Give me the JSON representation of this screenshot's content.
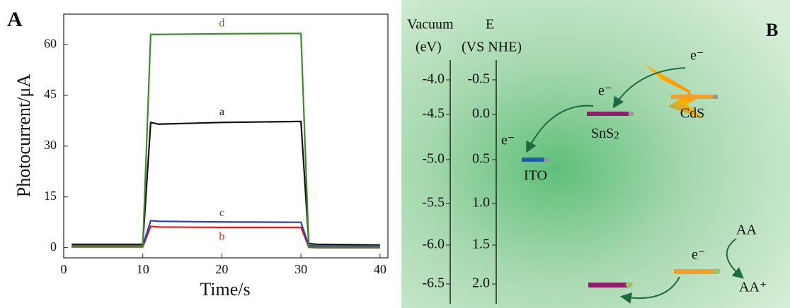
{
  "chart_data": {
    "type": "line",
    "panel_label": "A",
    "x_label": "Time/s",
    "y_label": "Photocurrent/μA",
    "x": [
      1,
      10,
      11,
      12,
      20,
      30,
      31,
      32,
      40
    ],
    "series": [
      {
        "name": "a",
        "color": "#111111",
        "values": [
          1,
          1,
          37,
          36.5,
          37,
          37.3,
          1.2,
          1,
          0.8
        ]
      },
      {
        "name": "b",
        "color": "#e02020",
        "values": [
          0.2,
          0.2,
          6.3,
          6.1,
          6,
          6,
          0.1,
          0,
          0
        ]
      },
      {
        "name": "c",
        "color": "#2a3fb0",
        "values": [
          0.5,
          0.5,
          8,
          7.8,
          7.6,
          7.5,
          0.6,
          0.5,
          0.5
        ]
      },
      {
        "name": "d",
        "color": "#3f8a2e",
        "values": [
          0.3,
          0.3,
          63,
          63,
          63.2,
          63.3,
          0.2,
          0.2,
          0.2
        ]
      }
    ],
    "xlim": [
      0,
      41
    ],
    "ylim": [
      -3,
      69
    ],
    "xticks": [
      0,
      10,
      20,
      30,
      40
    ],
    "yticks": [
      0,
      15,
      30,
      45,
      60
    ]
  },
  "panel_b": {
    "label": "B",
    "left_axis": {
      "title": [
        "Vacuum",
        "(eV)"
      ],
      "ticks": [
        "-4.0",
        "-4.5",
        "-5.0",
        "-5.5",
        "-6.0",
        "-6.5"
      ]
    },
    "right_axis": {
      "title": [
        "E",
        "(VS NHE)"
      ],
      "ticks": [
        "-0.5",
        "0.0",
        "0.5",
        "1.0",
        "1.5",
        "2.0"
      ]
    },
    "materials": {
      "cds": "CdS",
      "sns2": {
        "base": "SnS",
        "sub": "2"
      },
      "ito": "ITO"
    },
    "electron_labels": [
      "e⁻",
      "e⁻",
      "e⁻",
      "e⁻"
    ],
    "donor": "AA",
    "product": "AA⁺"
  }
}
